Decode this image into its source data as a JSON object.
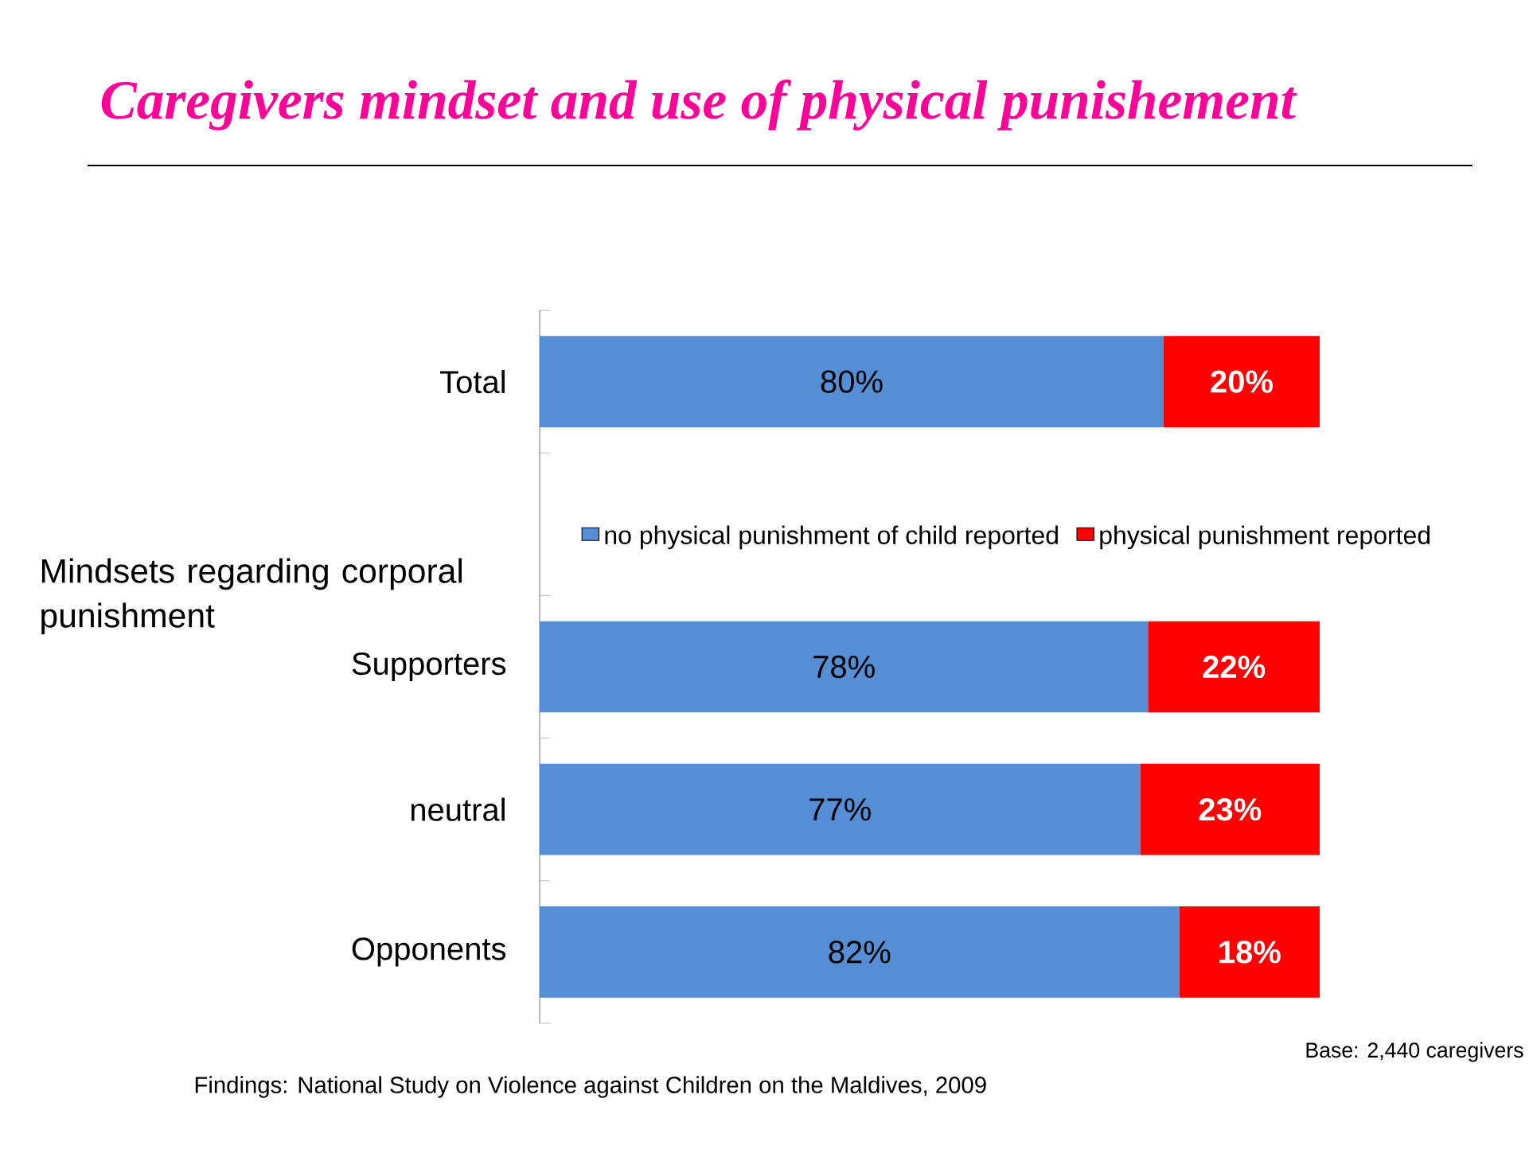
{
  "chart_data": {
    "type": "bar",
    "orientation": "horizontal",
    "stacked": true,
    "title": "Caregivers mindset and use of physical punishement",
    "categories": [
      "Total",
      null,
      "Supporters",
      "neutral",
      "Opponents"
    ],
    "series": [
      {
        "name": "no physical punishment of child reported",
        "color": "#558ed5",
        "values": [
          80,
          null,
          78,
          77,
          82
        ],
        "value_labels": [
          "80%",
          null,
          "78%",
          "77%",
          "82%"
        ]
      },
      {
        "name": "physical punishment reported",
        "color": "#ff0000",
        "values": [
          20,
          null,
          22,
          23,
          18
        ],
        "value_labels": [
          "20%",
          null,
          "22%",
          "23%",
          "18%"
        ]
      }
    ],
    "xlim": [
      0,
      100
    ],
    "tick_labels": "y",
    "legend": "top",
    "annotations": [
      "Mindsets regarding corporal punishment",
      "Findings: National Study on Violence against Children on the Maldives, 2009",
      "Base: 2,440 caregivers"
    ]
  }
}
